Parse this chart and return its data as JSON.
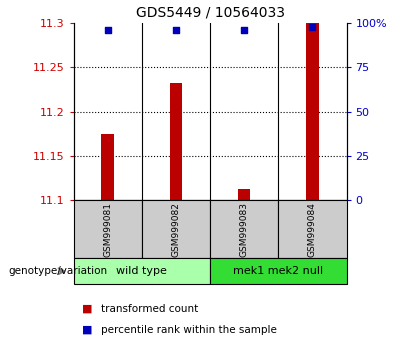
{
  "title": "GDS5449 / 10564033",
  "samples": [
    "GSM999081",
    "GSM999082",
    "GSM999083",
    "GSM999084"
  ],
  "red_values": [
    11.175,
    11.232,
    11.112,
    11.3
  ],
  "blue_values": [
    96,
    96,
    96,
    98
  ],
  "ylim_left": [
    11.1,
    11.3
  ],
  "ylim_right": [
    0,
    100
  ],
  "yticks_left": [
    11.1,
    11.15,
    11.2,
    11.25,
    11.3
  ],
  "yticks_right": [
    0,
    25,
    50,
    75,
    100
  ],
  "ytick_labels_right": [
    "0",
    "25",
    "50",
    "75",
    "100%"
  ],
  "gridlines": [
    11.15,
    11.2,
    11.25
  ],
  "bar_color": "#bb0000",
  "square_color": "#0000bb",
  "group1_label": "wild type",
  "group2_label": "mek1 mek2 null",
  "group_label_header": "genotype/variation",
  "legend_red": "transformed count",
  "legend_blue": "percentile rank within the sample",
  "group1_color": "#aaffaa",
  "group2_color": "#33dd33",
  "sample_bg_color": "#cccccc",
  "tick_color_left": "#cc0000",
  "tick_color_right": "#0000cc",
  "bar_width": 0.18
}
